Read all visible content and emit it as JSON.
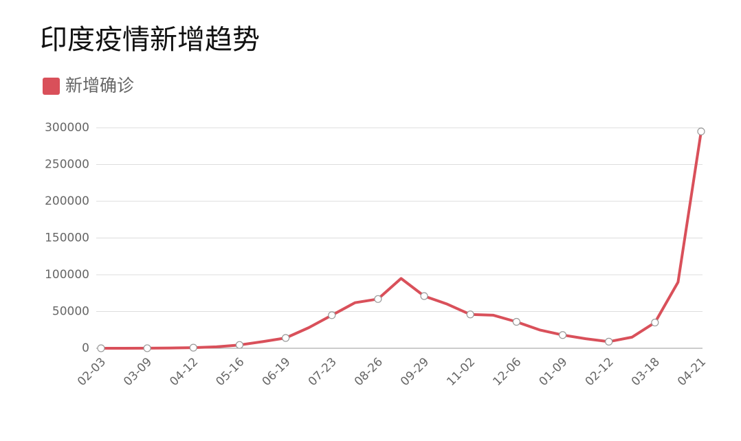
{
  "chart_data": {
    "type": "line",
    "title": "印度疫情新增趋势",
    "categories": [
      "02-03",
      null,
      "03-09",
      null,
      "04-12",
      null,
      "05-16",
      null,
      "06-19",
      null,
      "07-23",
      null,
      "08-26",
      null,
      "09-29",
      null,
      "11-02",
      null,
      "12-06",
      null,
      "01-09",
      null,
      "02-12",
      null,
      "03-18",
      null,
      "04-21"
    ],
    "series": [
      {
        "name": "新增确诊",
        "color": "#d9505a",
        "values": [
          0,
          0,
          50,
          400,
          800,
          2000,
          4500,
          9000,
          14000,
          28000,
          45000,
          62000,
          67000,
          95000,
          71000,
          60000,
          46000,
          45000,
          36000,
          25000,
          18000,
          13000,
          9000,
          15000,
          35000,
          90000,
          295000
        ]
      }
    ],
    "ylim": [
      0,
      300000
    ],
    "yticks": [
      0,
      50000,
      100000,
      150000,
      200000,
      250000,
      300000
    ],
    "grid": true
  }
}
